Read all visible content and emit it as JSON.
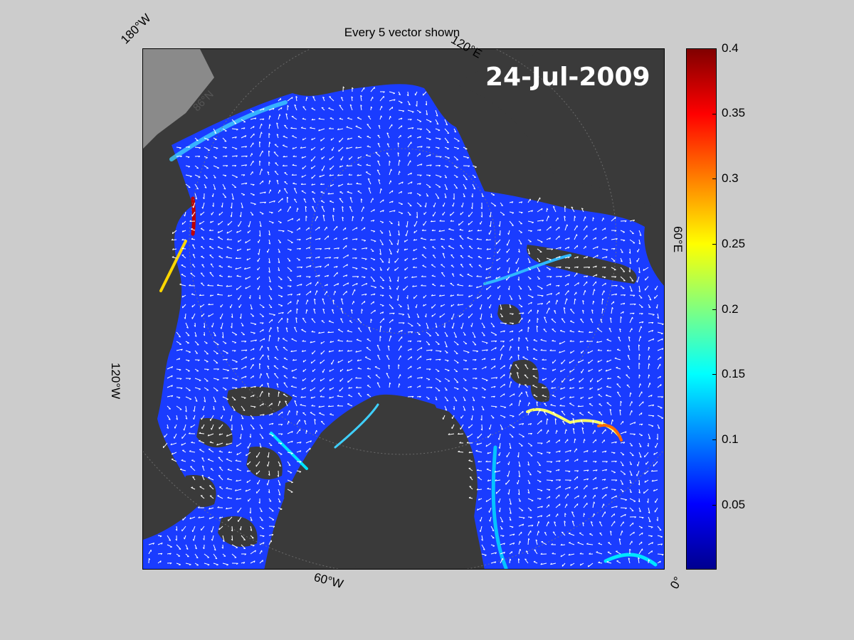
{
  "title": "Every 5 vector shown",
  "date": "24-Jul-2009",
  "lat_label": "86°N",
  "geo_labels": {
    "w180": "180°W",
    "e120": "120°E",
    "e60": "60°E",
    "w120": "120°W",
    "w60": "60°W",
    "zero": "0°"
  },
  "colorbar": {
    "ticks": [
      "0.4",
      "0.35",
      "0.3",
      "0.25",
      "0.2",
      "0.15",
      "0.1",
      "0.05"
    ],
    "min": 0,
    "max": 0.4,
    "colormap": "jet"
  },
  "colors": {
    "background": "#cccccc",
    "land": "#3a3a3a",
    "ocean": "#1a3cff",
    "vectors": "#ffffff"
  }
}
